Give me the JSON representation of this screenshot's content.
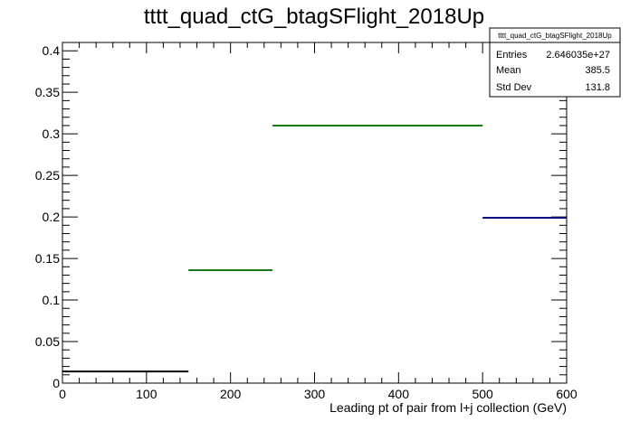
{
  "chart_data": {
    "type": "histogram",
    "title": "tttt_quad_ctG_btagSFlight_2018Up",
    "xlabel": "Leading pt of pair from l+j collection (GeV)",
    "ylabel": "",
    "xlim": [
      0,
      600
    ],
    "ylim": [
      0,
      0.41
    ],
    "x_ticks": [
      0,
      100,
      200,
      300,
      400,
      500,
      600
    ],
    "y_ticks": [
      0,
      0.05,
      0.1,
      0.15,
      0.2,
      0.25,
      0.3,
      0.35,
      0.4
    ],
    "x_tick_labels": [
      "0",
      "100",
      "200",
      "300",
      "400",
      "500",
      "600"
    ],
    "y_tick_labels": [
      "0",
      "0.05",
      "0.1",
      "0.15",
      "0.2",
      "0.25",
      "0.3",
      "0.35",
      "0.4"
    ],
    "bins": [
      {
        "low": 0,
        "high": 150,
        "value": 0.014,
        "color": "#000000"
      },
      {
        "low": 150,
        "high": 250,
        "value": 0.136,
        "color": "#1a7a1a"
      },
      {
        "low": 250,
        "high": 500,
        "value": 0.31,
        "color": "#1a7a1a"
      },
      {
        "low": 500,
        "high": 600,
        "value": 0.199,
        "color": "#000080"
      }
    ],
    "stats": {
      "name": "tttt_quad_ctG_btagSFlight_2018Up",
      "rows": [
        {
          "label": "Entries",
          "value": "2.646035e+27"
        },
        {
          "label": "Mean",
          "value": "385.5"
        },
        {
          "label": "Std Dev",
          "value": "131.8"
        }
      ]
    }
  }
}
